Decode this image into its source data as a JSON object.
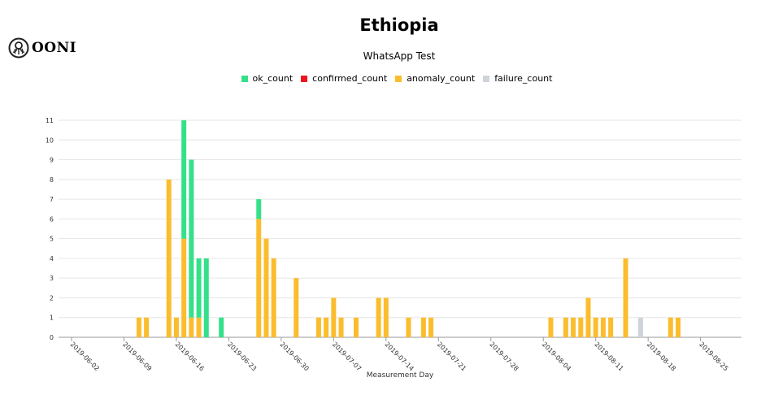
{
  "header": {
    "title": "Ethiopia",
    "subtitle": "WhatsApp Test",
    "logo_text": "OONI"
  },
  "colors": {
    "ok": "#35e08a",
    "confirmed": "#f0141e",
    "anomaly": "#fbbd2e",
    "failure": "#ced4da",
    "grid": "#e6e6e6",
    "axis": "#999999"
  },
  "legend": [
    {
      "key": "ok",
      "label": "ok_count"
    },
    {
      "key": "confirmed",
      "label": "confirmed_count"
    },
    {
      "key": "anomaly",
      "label": "anomaly_count"
    },
    {
      "key": "failure",
      "label": "failure_count"
    }
  ],
  "chart_data": {
    "type": "bar",
    "stacked": true,
    "xlabel": "Measurement Day",
    "ylabel": "",
    "ylim": [
      0,
      11
    ],
    "yticks": [
      0,
      1,
      2,
      3,
      4,
      5,
      6,
      7,
      8,
      9,
      10,
      11
    ],
    "grid": true,
    "legend_position": "top-center",
    "x_start": "2019-06-02",
    "x_end": "2019-08-28",
    "xticks": [
      "2019-06-02",
      "2019-06-09",
      "2019-06-16",
      "2019-06-23",
      "2019-06-30",
      "2019-07-07",
      "2019-07-14",
      "2019-07-21",
      "2019-07-28",
      "2019-08-04",
      "2019-08-11",
      "2019-08-18",
      "2019-08-25"
    ],
    "series_names": [
      "ok_count",
      "confirmed_count",
      "anomaly_count",
      "failure_count"
    ],
    "bars": [
      {
        "date": "2019-06-11",
        "ok": 0,
        "confirmed": 0,
        "anomaly": 1,
        "failure": 0
      },
      {
        "date": "2019-06-12",
        "ok": 0,
        "confirmed": 0,
        "anomaly": 1,
        "failure": 0
      },
      {
        "date": "2019-06-15",
        "ok": 0,
        "confirmed": 0,
        "anomaly": 8,
        "failure": 0
      },
      {
        "date": "2019-06-16",
        "ok": 0,
        "confirmed": 0,
        "anomaly": 1,
        "failure": 0
      },
      {
        "date": "2019-06-17",
        "ok": 6,
        "confirmed": 0,
        "anomaly": 5,
        "failure": 0
      },
      {
        "date": "2019-06-18",
        "ok": 8,
        "confirmed": 0,
        "anomaly": 1,
        "failure": 0
      },
      {
        "date": "2019-06-19",
        "ok": 3,
        "confirmed": 0,
        "anomaly": 1,
        "failure": 0
      },
      {
        "date": "2019-06-20",
        "ok": 4,
        "confirmed": 0,
        "anomaly": 0,
        "failure": 0
      },
      {
        "date": "2019-06-22",
        "ok": 1,
        "confirmed": 0,
        "anomaly": 0,
        "failure": 0
      },
      {
        "date": "2019-06-27",
        "ok": 1,
        "confirmed": 0,
        "anomaly": 6,
        "failure": 0
      },
      {
        "date": "2019-06-28",
        "ok": 0,
        "confirmed": 0,
        "anomaly": 5,
        "failure": 0
      },
      {
        "date": "2019-06-29",
        "ok": 0,
        "confirmed": 0,
        "anomaly": 4,
        "failure": 0
      },
      {
        "date": "2019-07-02",
        "ok": 0,
        "confirmed": 0,
        "anomaly": 3,
        "failure": 0
      },
      {
        "date": "2019-07-05",
        "ok": 0,
        "confirmed": 0,
        "anomaly": 1,
        "failure": 0
      },
      {
        "date": "2019-07-06",
        "ok": 0,
        "confirmed": 0,
        "anomaly": 1,
        "failure": 0
      },
      {
        "date": "2019-07-07",
        "ok": 0,
        "confirmed": 0,
        "anomaly": 2,
        "failure": 0
      },
      {
        "date": "2019-07-08",
        "ok": 0,
        "confirmed": 0,
        "anomaly": 1,
        "failure": 0
      },
      {
        "date": "2019-07-10",
        "ok": 0,
        "confirmed": 0,
        "anomaly": 1,
        "failure": 0
      },
      {
        "date": "2019-07-13",
        "ok": 0,
        "confirmed": 0,
        "anomaly": 2,
        "failure": 0
      },
      {
        "date": "2019-07-14",
        "ok": 0,
        "confirmed": 0,
        "anomaly": 2,
        "failure": 0
      },
      {
        "date": "2019-07-17",
        "ok": 0,
        "confirmed": 0,
        "anomaly": 1,
        "failure": 0
      },
      {
        "date": "2019-07-19",
        "ok": 0,
        "confirmed": 0,
        "anomaly": 1,
        "failure": 0
      },
      {
        "date": "2019-07-20",
        "ok": 0,
        "confirmed": 0,
        "anomaly": 1,
        "failure": 0
      },
      {
        "date": "2019-08-05",
        "ok": 0,
        "confirmed": 0,
        "anomaly": 1,
        "failure": 0
      },
      {
        "date": "2019-08-07",
        "ok": 0,
        "confirmed": 0,
        "anomaly": 1,
        "failure": 0
      },
      {
        "date": "2019-08-08",
        "ok": 0,
        "confirmed": 0,
        "anomaly": 1,
        "failure": 0
      },
      {
        "date": "2019-08-09",
        "ok": 0,
        "confirmed": 0,
        "anomaly": 1,
        "failure": 0
      },
      {
        "date": "2019-08-10",
        "ok": 0,
        "confirmed": 0,
        "anomaly": 2,
        "failure": 0
      },
      {
        "date": "2019-08-11",
        "ok": 0,
        "confirmed": 0,
        "anomaly": 1,
        "failure": 0
      },
      {
        "date": "2019-08-12",
        "ok": 0,
        "confirmed": 0,
        "anomaly": 1,
        "failure": 0
      },
      {
        "date": "2019-08-13",
        "ok": 0,
        "confirmed": 0,
        "anomaly": 1,
        "failure": 0
      },
      {
        "date": "2019-08-15",
        "ok": 0,
        "confirmed": 0,
        "anomaly": 4,
        "failure": 0
      },
      {
        "date": "2019-08-17",
        "ok": 0,
        "confirmed": 0,
        "anomaly": 0,
        "failure": 1
      },
      {
        "date": "2019-08-21",
        "ok": 0,
        "confirmed": 0,
        "anomaly": 1,
        "failure": 0
      },
      {
        "date": "2019-08-22",
        "ok": 0,
        "confirmed": 0,
        "anomaly": 1,
        "failure": 0
      }
    ]
  }
}
